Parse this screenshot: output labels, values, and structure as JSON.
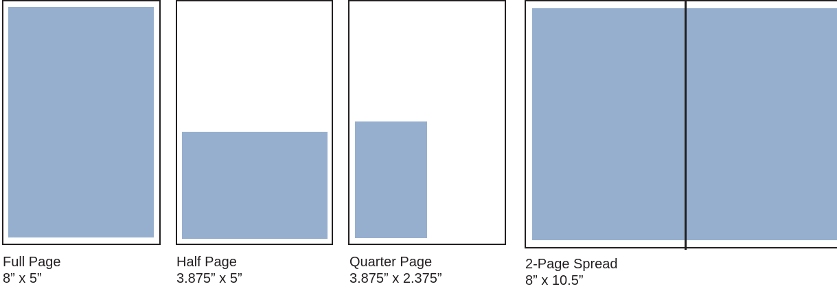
{
  "ad_color": "#96afcf",
  "border_color": "#231f20",
  "ad_sizes": [
    {
      "name": "Full Page",
      "dimensions": "8” x 5”"
    },
    {
      "name": "Half Page",
      "dimensions": "3.875” x 5”"
    },
    {
      "name": "Quarter Page",
      "dimensions": "3.875” x 2.375”"
    },
    {
      "name": "2-Page Spread",
      "dimensions": "8” x 10.5”"
    }
  ]
}
